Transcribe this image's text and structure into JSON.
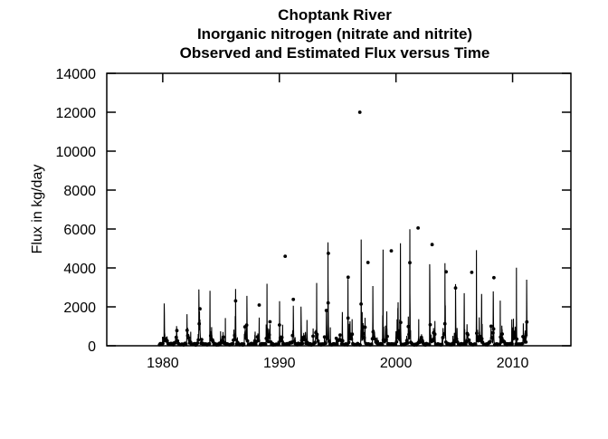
{
  "page": {
    "background_color": "#ffffff",
    "foreground_color": "#000000"
  },
  "chart_data": {
    "type": "line+scatter",
    "title_lines": [
      "Choptank River",
      "Inorganic nitrogen (nitrate and nitrite)",
      "Observed and Estimated Flux versus Time"
    ],
    "xlabel": "",
    "ylabel": "Flux in kg/day",
    "x_ticks": [
      1980,
      1990,
      2000,
      2010
    ],
    "y_ticks": [
      0,
      2000,
      4000,
      6000,
      8000,
      10000,
      12000,
      14000
    ],
    "xlim": [
      1975.2,
      2015.0
    ],
    "ylim": [
      0,
      14000
    ],
    "grid": false,
    "legend": "none",
    "tick_style": "inward, mirrored on all four box sides",
    "color": "#000000",
    "series": {
      "line_name": "estimated-daily-flux",
      "points_name": "observed-flux-samples",
      "start_year": 1979.7,
      "end_year": 2011.25,
      "baseline_kg_day": {
        "summer_low": 60,
        "winter_high": 330
      },
      "annual_peak_flux": {
        "1980": 1300,
        "1981": 950,
        "1982": 1600,
        "1983": 2800,
        "1984": 2700,
        "1985": 1600,
        "1986": 2550,
        "1987": 2450,
        "1988": 1500,
        "1989": 3350,
        "1990": 2400,
        "1991": 1850,
        "1992": 2200,
        "1993": 2900,
        "1994": 5200,
        "1995": 1900,
        "1996": 3600,
        "1997": 5500,
        "1998": 2850,
        "1999": 5050,
        "2000": 5450,
        "2001": 5400,
        "2002": 1500,
        "2003": 3900,
        "2004": 3450,
        "2005": 3050,
        "2006": 2700,
        "2007": 5100,
        "2008": 2600,
        "2009": 2400,
        "2010": 4150,
        "2011": 3400
      },
      "observed_outliers": [
        [
          1990.5,
          4600
        ],
        [
          1994.2,
          4750
        ],
        [
          1995.9,
          3520
        ],
        [
          1996.9,
          12000
        ],
        [
          1997.6,
          4280
        ],
        [
          1999.6,
          4880
        ],
        [
          2001.9,
          6050
        ],
        [
          2003.1,
          5200
        ],
        [
          2004.3,
          3800
        ],
        [
          2006.5,
          3770
        ],
        [
          2008.4,
          3500
        ]
      ],
      "observed_sampling_per_year": 13
    }
  }
}
